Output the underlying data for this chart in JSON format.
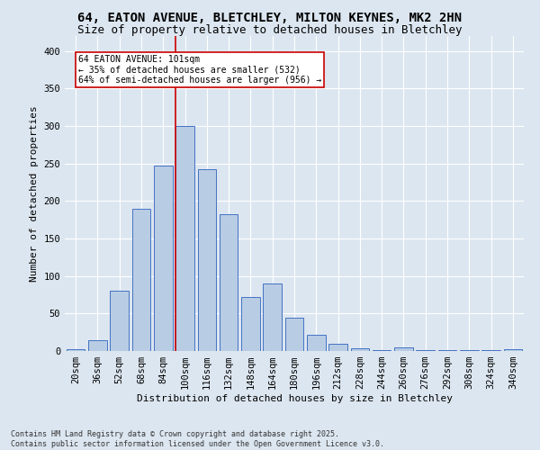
{
  "title_line1": "64, EATON AVENUE, BLETCHLEY, MILTON KEYNES, MK2 2HN",
  "title_line2": "Size of property relative to detached houses in Bletchley",
  "xlabel": "Distribution of detached houses by size in Bletchley",
  "ylabel": "Number of detached properties",
  "bar_color": "#b8cce4",
  "bar_edge_color": "#4472c4",
  "vline_color": "#cc0000",
  "vline_x_index": 5,
  "annotation_text": "64 EATON AVENUE: 101sqm\n← 35% of detached houses are smaller (532)\n64% of semi-detached houses are larger (956) →",
  "annotation_box_color": "#ffffff",
  "annotation_edge_color": "#cc0000",
  "categories": [
    "20sqm",
    "36sqm",
    "52sqm",
    "68sqm",
    "84sqm",
    "100sqm",
    "116sqm",
    "132sqm",
    "148sqm",
    "164sqm",
    "180sqm",
    "196sqm",
    "212sqm",
    "228sqm",
    "244sqm",
    "260sqm",
    "276sqm",
    "292sqm",
    "308sqm",
    "324sqm",
    "340sqm"
  ],
  "values": [
    3,
    14,
    80,
    190,
    247,
    300,
    242,
    182,
    72,
    90,
    45,
    22,
    10,
    4,
    1,
    5,
    1,
    1,
    1,
    1,
    2
  ],
  "ylim": [
    0,
    420
  ],
  "yticks": [
    0,
    50,
    100,
    150,
    200,
    250,
    300,
    350,
    400
  ],
  "background_color": "#dce6f0",
  "grid_color": "#ffffff",
  "footnote": "Contains HM Land Registry data © Crown copyright and database right 2025.\nContains public sector information licensed under the Open Government Licence v3.0.",
  "title_fontsize": 10,
  "subtitle_fontsize": 9,
  "axis_label_fontsize": 8,
  "tick_fontsize": 7.5,
  "annotation_fontsize": 7,
  "footnote_fontsize": 6
}
